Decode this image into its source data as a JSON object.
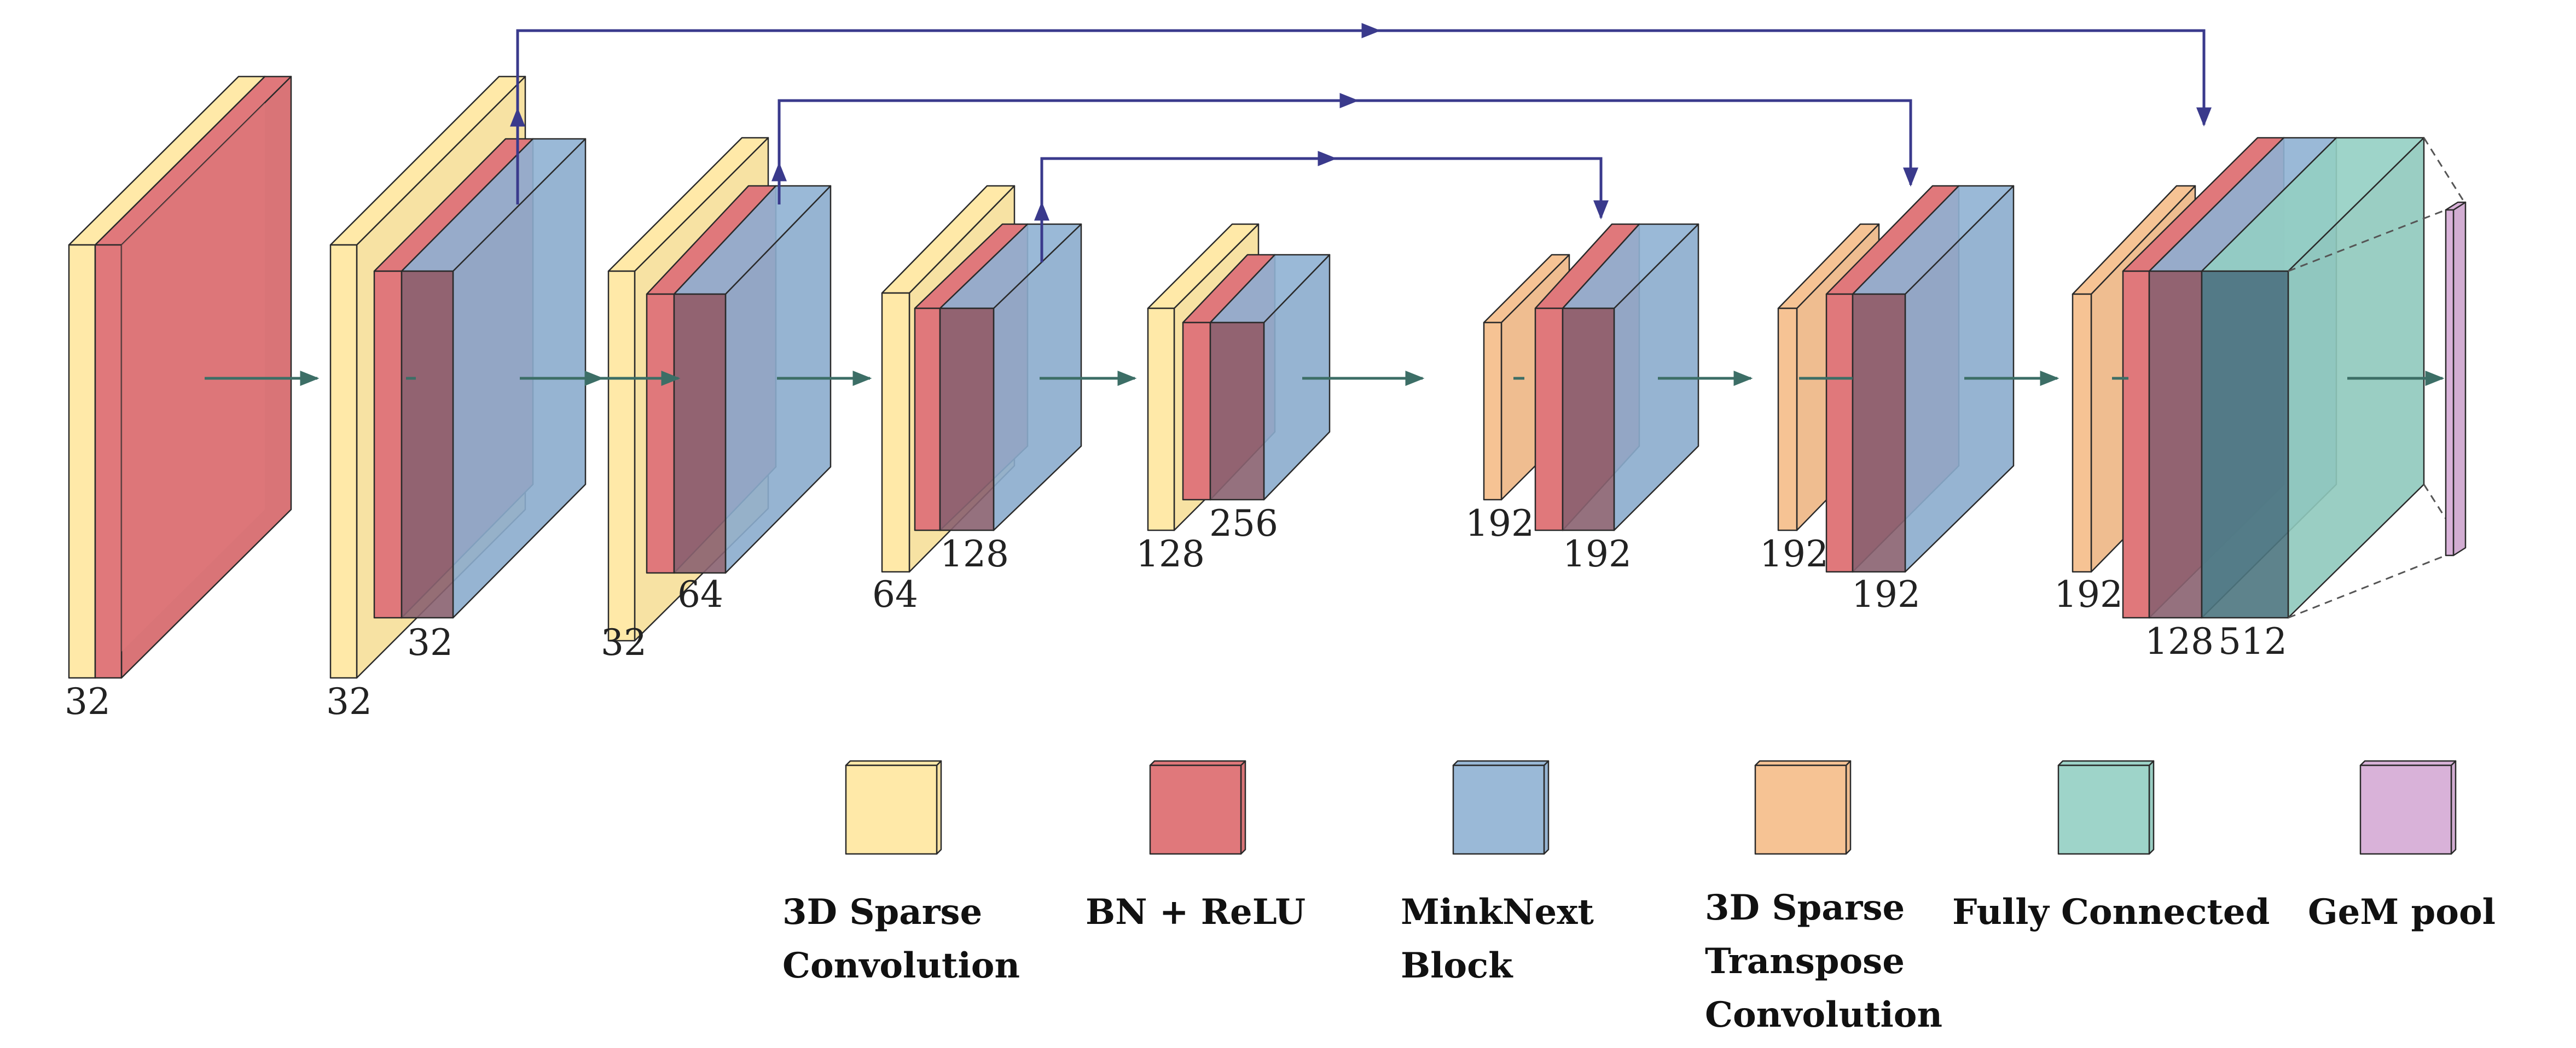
{
  "diagram": {
    "layer_types": {
      "conv": {
        "label_lines": [
          "3D Sparse",
          "Convolution"
        ],
        "color": "#FFE9A8",
        "edge": "#c9b46a"
      },
      "bn": {
        "label_lines": [
          "BN + ReLU"
        ],
        "color": "#E0787B",
        "edge": "#a84a4d"
      },
      "mink": {
        "label_lines": [
          "MinkNext",
          "Block"
        ],
        "color": "#8FB1D3",
        "edge": "#4a6f95"
      },
      "tconv": {
        "label_lines": [
          "3D Sparse",
          "Transpose",
          "Convolution"
        ],
        "color": "#F6C394",
        "edge": "#c08a55"
      },
      "fc": {
        "label_lines": [
          "Fully Connected"
        ],
        "color": "#93CFC3",
        "edge": "#4c9a8a"
      },
      "gem": {
        "label_lines": [
          "GeM pool"
        ],
        "color": "#D9B2D9",
        "edge": "#a278a2"
      }
    },
    "stage_labels": {
      "s1": [
        "32"
      ],
      "s2": [
        "32",
        "32"
      ],
      "s3": [
        "32",
        "64"
      ],
      "s4": [
        "64",
        "128"
      ],
      "s5": [
        "128",
        "256"
      ],
      "s6": [
        "192",
        "192"
      ],
      "s7": [
        "192",
        "192"
      ],
      "s8": [
        "192",
        "128",
        "512"
      ]
    },
    "colors": {
      "flow_arrow": "#3c6e66",
      "skip_arrow": "#3a3a8c",
      "overlap_bn_mink": "#8a6270",
      "overlap_bn_fc": "#4c7680"
    }
  }
}
